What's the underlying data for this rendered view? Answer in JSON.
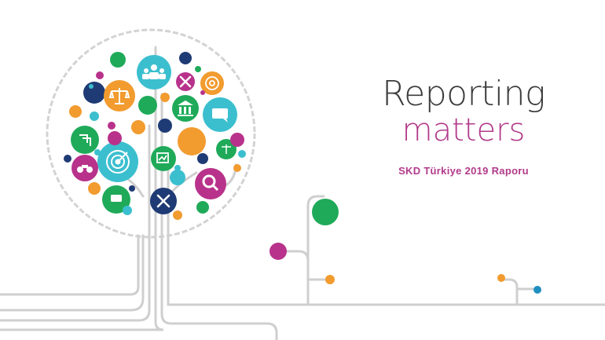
{
  "hero": {
    "title_line1": "Reporting",
    "title_line2": "matters",
    "subtitle": "SKD Türkiye 2019 Raporu"
  },
  "colors": {
    "teal": "#3bbfcf",
    "green": "#1faa59",
    "magenta": "#b8328b",
    "orange": "#f29b2f",
    "navy": "#1f3b75",
    "branch_gray": "#cfcfcf",
    "title_gray": "#3b3b3b",
    "accent_magenta": "#b23a8a"
  },
  "icons": [
    "team-icon",
    "scales-icon",
    "tools-icon",
    "target-icon",
    "building-icon",
    "chat-icon",
    "magnifier-icon",
    "chart-icon",
    "binoculars-icon",
    "wrench-icon"
  ]
}
